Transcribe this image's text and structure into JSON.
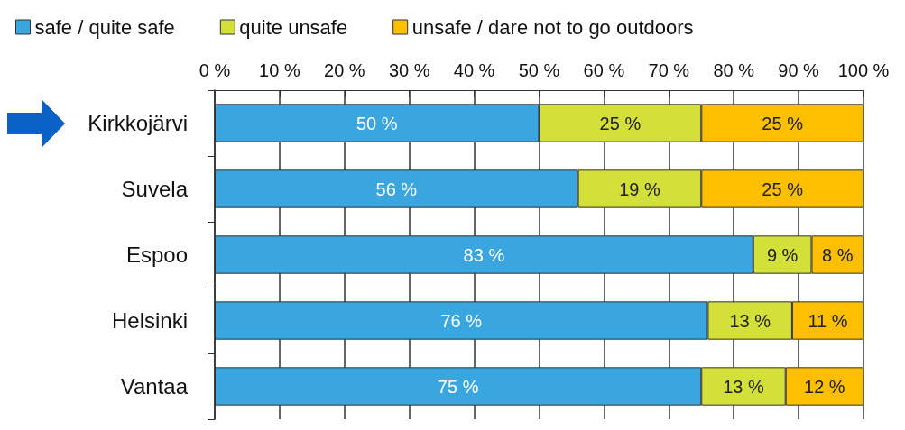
{
  "chart_data": {
    "type": "bar",
    "orientation": "horizontal",
    "stacked": true,
    "categories": [
      "Kirkkojärvi",
      "Suvela",
      "Espoo",
      "Helsinki",
      "Vantaa"
    ],
    "series": [
      {
        "name": "safe / quite safe",
        "color": "#3aa6e0",
        "values": [
          50,
          56,
          83,
          76,
          75
        ],
        "value_labels": [
          "50 %",
          "56 %",
          "83 %",
          "76 %",
          "75 %"
        ]
      },
      {
        "name": "quite unsafe",
        "color": "#d4e03a",
        "values": [
          25,
          19,
          9,
          13,
          13
        ],
        "value_labels": [
          "25 %",
          "19 %",
          "9 %",
          "13 %",
          "13 %"
        ]
      },
      {
        "name": "unsafe / dare not to go outdoors",
        "color": "#fdbf00",
        "values": [
          25,
          25,
          8,
          11,
          12
        ],
        "value_labels": [
          "25 %",
          "25 %",
          "8 %",
          "11 %",
          "12 %"
        ]
      }
    ],
    "xlim": [
      0,
      100
    ],
    "xticks": [
      {
        "value": 0,
        "label": "0 %"
      },
      {
        "value": 10,
        "label": "10 %"
      },
      {
        "value": 20,
        "label": "20 %"
      },
      {
        "value": 30,
        "label": "30 %"
      },
      {
        "value": 40,
        "label": "40 %"
      },
      {
        "value": 50,
        "label": "50 %"
      },
      {
        "value": 60,
        "label": "60 %"
      },
      {
        "value": 70,
        "label": "70 %"
      },
      {
        "value": 80,
        "label": "80 %"
      },
      {
        "value": 90,
        "label": "90 %"
      },
      {
        "value": 100,
        "label": "100 %"
      }
    ],
    "grid": "x",
    "legend": "top left"
  }
}
